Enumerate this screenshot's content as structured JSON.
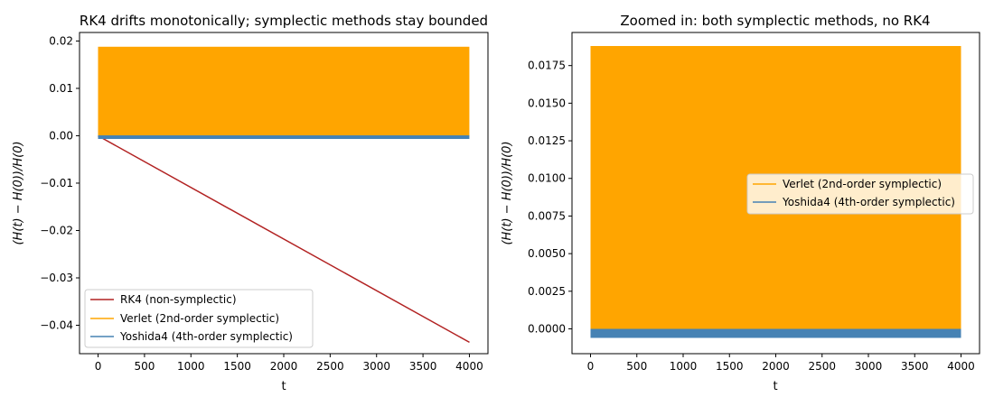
{
  "chart_data": [
    {
      "type": "line",
      "title": "RK4 drifts monotonically; symplectic methods stay bounded",
      "xlabel": "t",
      "ylabel": "(H(t) − H(0))/H(0)",
      "xlim": [
        -200,
        4200
      ],
      "ylim": [
        -0.046,
        0.0218
      ],
      "xticks": [
        0,
        500,
        1000,
        1500,
        2000,
        2500,
        3000,
        3500,
        4000
      ],
      "xtick_labels": [
        "0",
        "500",
        "1000",
        "1500",
        "2000",
        "2500",
        "3000",
        "3500",
        "4000"
      ],
      "yticks": [
        -0.04,
        -0.03,
        -0.02,
        -0.01,
        0.0,
        0.01,
        0.02
      ],
      "ytick_labels": [
        "−0.04",
        "−0.03",
        "−0.02",
        "−0.01",
        "0.00",
        "0.01",
        "0.02"
      ],
      "grid": false,
      "legend_position": "lower-left",
      "series": [
        {
          "name": "RK4 (non-symplectic)",
          "color": "#b22222",
          "kind": "line",
          "x": [
            0,
            4000
          ],
          "y": [
            0.0,
            -0.0436
          ]
        },
        {
          "name": "Verlet (2nd-order symplectic)",
          "color": "#ffa500",
          "kind": "band",
          "x": [
            0,
            4000
          ],
          "ymin": 0.0,
          "ymax": 0.0188
        },
        {
          "name": "Yoshida4 (4th-order symplectic)",
          "color": "#4682b4",
          "kind": "band",
          "x": [
            0,
            4000
          ],
          "ymin": -0.0006,
          "ymax": 0.0
        }
      ]
    },
    {
      "type": "line",
      "title": "Zoomed in: both symplectic methods, no RK4",
      "xlabel": "t",
      "ylabel": "(H(t) − H(0))/H(0)",
      "xlim": [
        -200,
        4200
      ],
      "ylim": [
        -0.00165,
        0.0197
      ],
      "xticks": [
        0,
        500,
        1000,
        1500,
        2000,
        2500,
        3000,
        3500,
        4000
      ],
      "xtick_labels": [
        "0",
        "500",
        "1000",
        "1500",
        "2000",
        "2500",
        "3000",
        "3500",
        "4000"
      ],
      "yticks": [
        0.0,
        0.0025,
        0.005,
        0.0075,
        0.01,
        0.0125,
        0.015,
        0.0175
      ],
      "ytick_labels": [
        "0.0000",
        "0.0025",
        "0.0050",
        "0.0075",
        "0.0100",
        "0.0125",
        "0.0150",
        "0.0175"
      ],
      "grid": false,
      "legend_position": "center-right",
      "series": [
        {
          "name": "Verlet (2nd-order symplectic)",
          "color": "#ffa500",
          "kind": "band",
          "x": [
            0,
            4000
          ],
          "ymin": 0.0,
          "ymax": 0.0188
        },
        {
          "name": "Yoshida4 (4th-order symplectic)",
          "color": "#4682b4",
          "kind": "band",
          "x": [
            0,
            4000
          ],
          "ymin": -0.0006,
          "ymax": 0.0
        }
      ]
    }
  ]
}
